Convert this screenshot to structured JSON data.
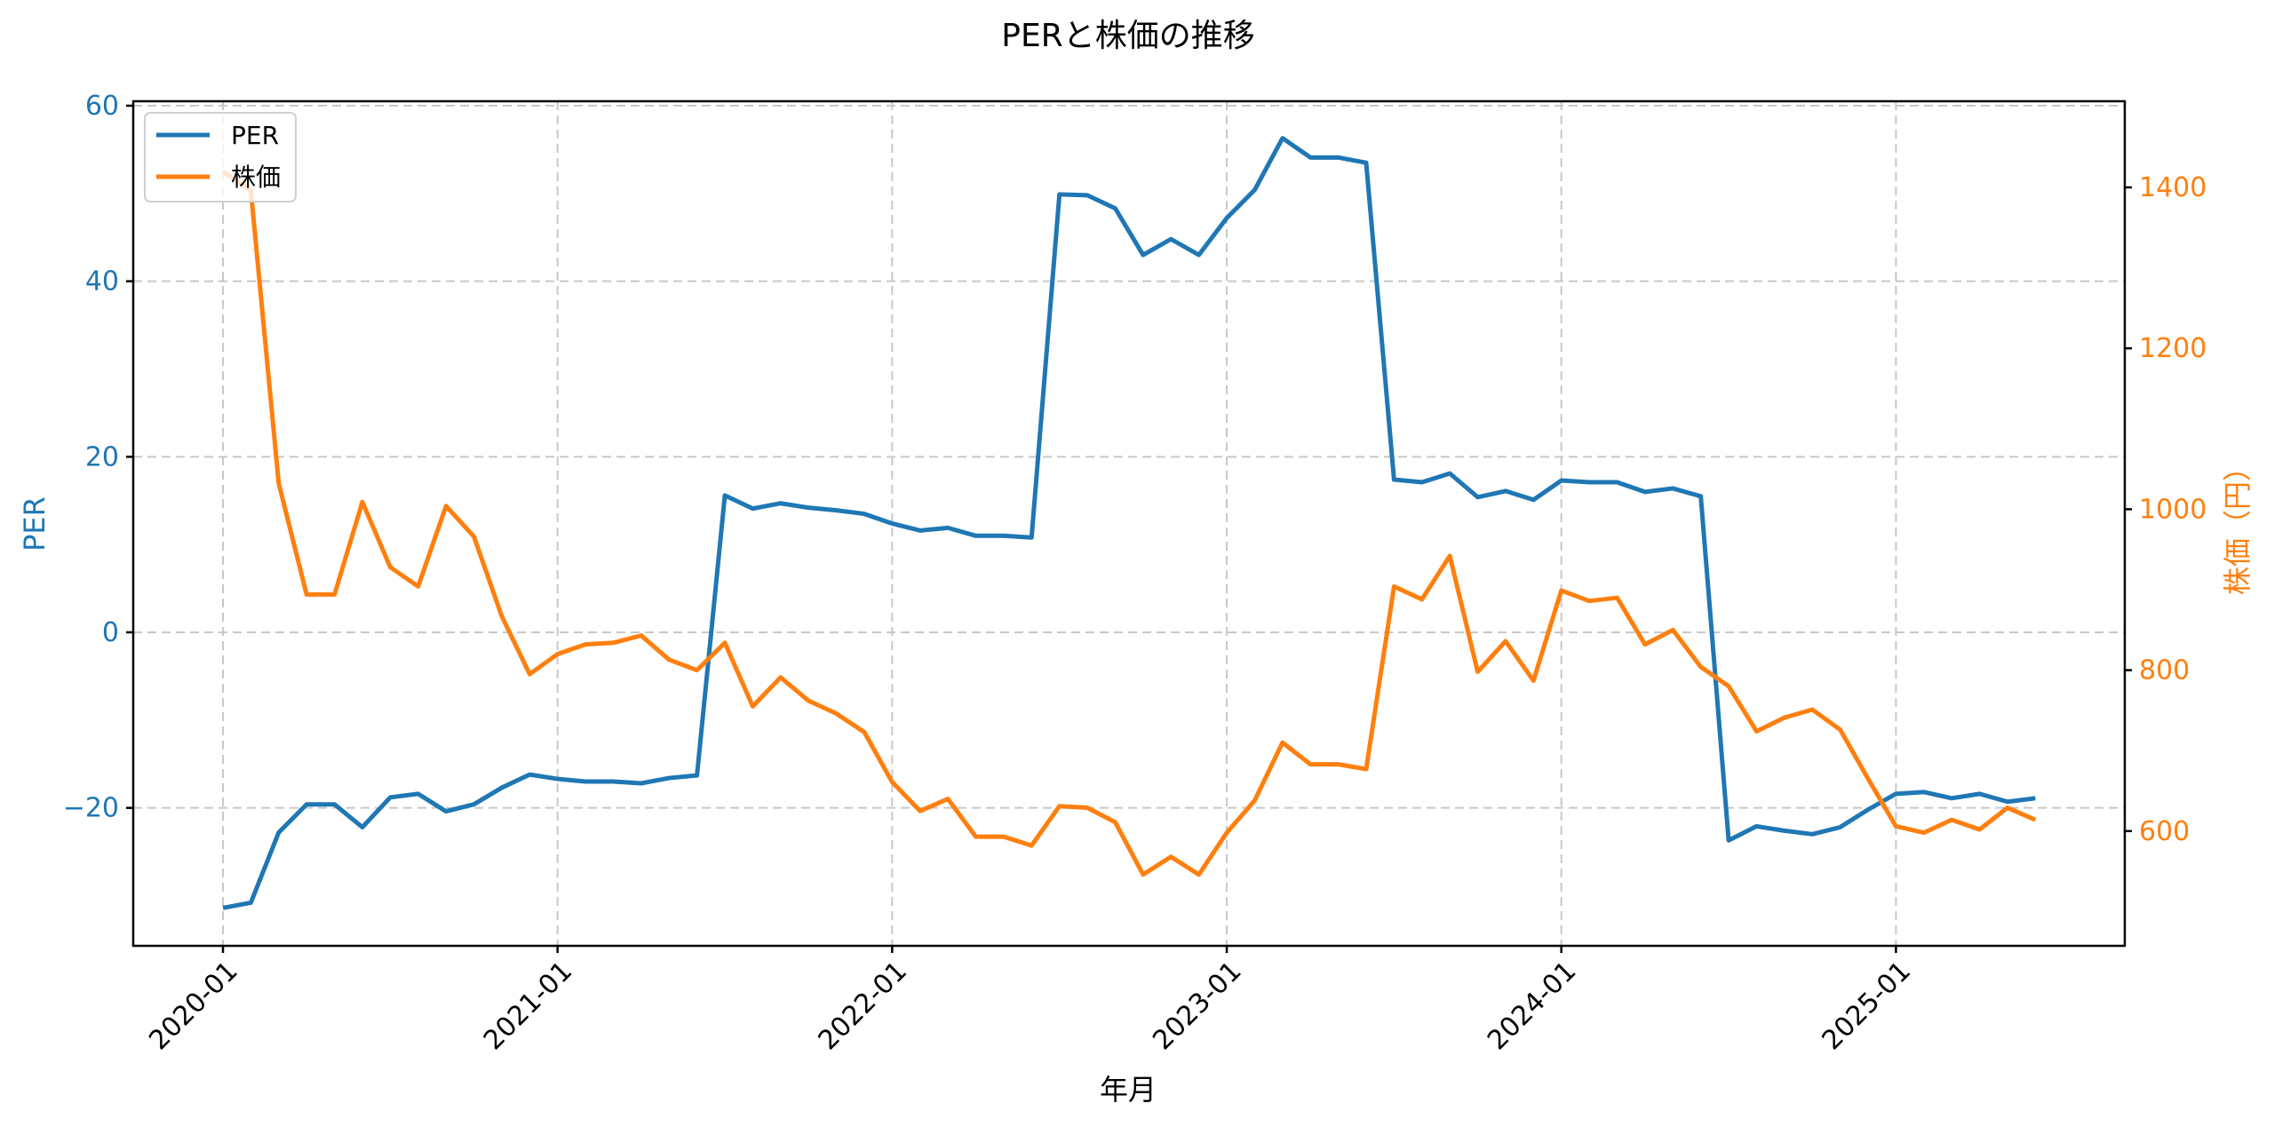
{
  "chart_data": {
    "type": "line",
    "title": "PERと株価の推移",
    "xlabel": "年月",
    "ylabel_left": "PER",
    "ylabel_right": "株価（円）",
    "x_tick_labels": [
      "2020-01",
      "2021-01",
      "2022-01",
      "2023-01",
      "2024-01",
      "2025-01"
    ],
    "y_left_ticks": [
      60,
      40,
      20,
      0,
      -20
    ],
    "y_left_tick_labels": [
      "60",
      "40",
      "20",
      "0",
      "−20"
    ],
    "y_right_ticks": [
      1400,
      1200,
      1000,
      800,
      600
    ],
    "y_right_tick_labels": [
      "1400",
      "1200",
      "1000",
      "800",
      "600"
    ],
    "ylim_left": [
      -35.5,
      60.5
    ],
    "ylim_right": [
      457,
      1511
    ],
    "grid": true,
    "legend_position": "upper left",
    "x": [
      "2020-01",
      "2020-02",
      "2020-03",
      "2020-04",
      "2020-05",
      "2020-06",
      "2020-07",
      "2020-08",
      "2020-09",
      "2020-10",
      "2020-11",
      "2020-12",
      "2021-01",
      "2021-02",
      "2021-03",
      "2021-04",
      "2021-05",
      "2021-06",
      "2021-07",
      "2021-08",
      "2021-09",
      "2021-10",
      "2021-11",
      "2021-12",
      "2022-01",
      "2022-02",
      "2022-03",
      "2022-04",
      "2022-05",
      "2022-06",
      "2022-07",
      "2022-08",
      "2022-09",
      "2022-10",
      "2022-11",
      "2022-12",
      "2023-01",
      "2023-02",
      "2023-03",
      "2023-04",
      "2023-05",
      "2023-06",
      "2023-07",
      "2023-08",
      "2023-09",
      "2023-10",
      "2023-11",
      "2023-12",
      "2024-01",
      "2024-02",
      "2024-03",
      "2024-04",
      "2024-05",
      "2024-06",
      "2024-07",
      "2024-08",
      "2024-09",
      "2024-10",
      "2024-11",
      "2024-12",
      "2025-01",
      "2025-02",
      "2025-03",
      "2025-04",
      "2025-05",
      "2025-06"
    ],
    "series": [
      {
        "name": "PER",
        "axis": "left",
        "color": "#1f77b4",
        "values": [
          -31.4,
          -30.8,
          -22.8,
          -19.6,
          -19.6,
          -22.2,
          -18.8,
          -18.4,
          -20.4,
          -19.6,
          -17.7,
          -16.2,
          -16.7,
          -17.0,
          -17.0,
          -17.2,
          -16.6,
          -16.3,
          15.6,
          14.1,
          14.7,
          14.2,
          13.9,
          13.5,
          12.4,
          11.6,
          11.9,
          11.0,
          11.0,
          10.8,
          49.9,
          49.8,
          48.3,
          43.0,
          44.8,
          43.0,
          47.2,
          50.4,
          56.3,
          54.1,
          54.1,
          53.5,
          17.4,
          17.1,
          18.1,
          15.4,
          16.1,
          15.1,
          17.3,
          17.1,
          17.1,
          16.0,
          16.4,
          15.5,
          -23.7,
          -22.1,
          -22.6,
          -23.0,
          -22.2,
          -20.2,
          -18.4,
          -18.2,
          -18.9,
          -18.4,
          -19.3,
          -18.9
        ]
      },
      {
        "name": "株価",
        "axis": "right",
        "color": "#ff7f0e",
        "values": [
          1420,
          1396,
          1032,
          894,
          894,
          1009,
          928,
          904,
          1004,
          966,
          867,
          795,
          820,
          832,
          834,
          843,
          813,
          800,
          834,
          755,
          791,
          762,
          746,
          723,
          661,
          625,
          640,
          593,
          593,
          582,
          631,
          629,
          611,
          546,
          568,
          546,
          598,
          638,
          710,
          683,
          683,
          677,
          904,
          888,
          942,
          798,
          836,
          787,
          899,
          886,
          890,
          832,
          850,
          804,
          780,
          724,
          741,
          751,
          726,
          665,
          606,
          598,
          614,
          602,
          629,
          614
        ]
      }
    ]
  },
  "legend": {
    "items": [
      {
        "label": "PER",
        "color": "#1f77b4"
      },
      {
        "label": "株価",
        "color": "#ff7f0e"
      }
    ]
  },
  "colors": {
    "left_axis": "#1f77b4",
    "right_axis": "#ff7f0e",
    "grid": "#c8c8c8"
  }
}
